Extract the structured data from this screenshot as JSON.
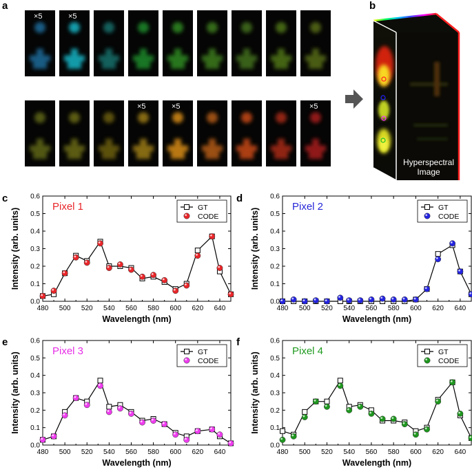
{
  "figure": {
    "panel_labels": [
      "a",
      "b",
      "c",
      "d",
      "e",
      "f"
    ],
    "panel_a": {
      "rows": [
        {
          "tiles": [
            {
              "color": "#1c6a9a",
              "badge": "×5"
            },
            {
              "color": "#19b5c6",
              "badge": "×5"
            },
            {
              "color": "#14706c",
              "badge": ""
            },
            {
              "color": "#1c8a2a",
              "badge": ""
            },
            {
              "color": "#2e8a24",
              "badge": ""
            },
            {
              "color": "#3e7c1e",
              "badge": ""
            },
            {
              "color": "#43701a",
              "badge": ""
            },
            {
              "color": "#4f7418",
              "badge": ""
            },
            {
              "color": "#566c16",
              "badge": ""
            }
          ]
        },
        {
          "tiles": [
            {
              "color": "#5e6616",
              "badge": ""
            },
            {
              "color": "#6a6a14",
              "badge": ""
            },
            {
              "color": "#6c5e10",
              "badge": ""
            },
            {
              "color": "#9c7c14",
              "badge": "×5"
            },
            {
              "color": "#d88c16",
              "badge": "×5"
            },
            {
              "color": "#b45c12",
              "badge": ""
            },
            {
              "color": "#c84818",
              "badge": ""
            },
            {
              "color": "#a82a14",
              "badge": ""
            },
            {
              "color": "#a81e1e",
              "badge": "×5"
            }
          ]
        }
      ]
    },
    "panel_b": {
      "text_line1": "Hyperspectral",
      "text_line2": "Image",
      "markers": [
        {
          "name": "pixel-1-marker",
          "color": "#ff2020"
        },
        {
          "name": "pixel-2-marker",
          "color": "#2020ff"
        },
        {
          "name": "pixel-3-marker",
          "color": "#ff30ff"
        },
        {
          "name": "pixel-4-marker",
          "color": "#20c020"
        }
      ]
    }
  },
  "chart_data": [
    {
      "panel": "c",
      "type": "line",
      "title": "Pixel 1",
      "title_color": "#e8262a",
      "marker_color": "#e8262a",
      "xlabel": "Wavelength (nm)",
      "ylabel": "Intensity (arb. units)",
      "xlim": [
        480,
        650
      ],
      "ylim": [
        0,
        0.6
      ],
      "xticks": [
        480,
        500,
        520,
        540,
        560,
        580,
        600,
        620,
        640
      ],
      "yticks": [
        0.0,
        0.1,
        0.2,
        0.3,
        0.4,
        0.5,
        0.6
      ],
      "ytick_labels": [
        "0.0",
        "0.1",
        "0.2",
        "0.3",
        "0.4",
        "0.5",
        "0.6"
      ],
      "legend": [
        "GT",
        "CODE"
      ],
      "series": [
        {
          "name": "GT",
          "x": [
            480,
            490,
            500,
            510,
            520,
            532,
            540,
            550,
            560,
            570,
            580,
            590,
            600,
            610,
            620,
            633,
            640,
            650
          ],
          "values": [
            0.03,
            0.04,
            0.16,
            0.26,
            0.23,
            0.34,
            0.2,
            0.2,
            0.19,
            0.13,
            0.14,
            0.11,
            0.07,
            0.1,
            0.29,
            0.37,
            0.17,
            0.04
          ]
        },
        {
          "name": "CODE",
          "x": [
            480,
            490,
            500,
            510,
            520,
            532,
            540,
            550,
            560,
            570,
            580,
            590,
            600,
            610,
            620,
            633,
            640,
            650
          ],
          "values": [
            0.03,
            0.06,
            0.16,
            0.25,
            0.22,
            0.33,
            0.19,
            0.21,
            0.18,
            0.14,
            0.15,
            0.12,
            0.06,
            0.09,
            0.26,
            0.37,
            0.19,
            0.04
          ]
        }
      ]
    },
    {
      "panel": "d",
      "type": "line",
      "title": "Pixel 2",
      "title_color": "#2626d8",
      "marker_color": "#2424e0",
      "xlabel": "Wavelength (nm)",
      "ylabel": "",
      "xlim": [
        480,
        650
      ],
      "ylim": [
        0,
        0.6
      ],
      "xticks": [
        480,
        500,
        520,
        540,
        560,
        580,
        600,
        620,
        640
      ],
      "yticks": [
        0.0,
        0.1,
        0.2,
        0.3,
        0.4,
        0.5,
        0.6
      ],
      "ytick_labels": [
        "0.0",
        "0.1",
        "0.2",
        "0.3",
        "0.4",
        "0.5",
        "0.6"
      ],
      "legend": [
        "GT",
        "CODE"
      ],
      "series": [
        {
          "name": "GT",
          "x": [
            480,
            490,
            500,
            510,
            520,
            532,
            540,
            550,
            560,
            570,
            580,
            590,
            600,
            610,
            620,
            633,
            640,
            650
          ],
          "values": [
            0.0,
            0.0,
            0.0,
            0.0,
            0.0,
            0.0,
            0.0,
            0.0,
            0.0,
            0.0,
            0.0,
            0.0,
            0.01,
            0.07,
            0.27,
            0.32,
            0.17,
            0.04
          ]
        },
        {
          "name": "CODE",
          "x": [
            480,
            490,
            500,
            510,
            520,
            532,
            540,
            550,
            560,
            570,
            580,
            590,
            600,
            610,
            620,
            633,
            640,
            650
          ],
          "values": [
            0.0,
            0.01,
            0.0,
            0.005,
            0.0,
            0.02,
            0.005,
            0.005,
            0.01,
            0.015,
            0.01,
            0.01,
            0.01,
            0.07,
            0.24,
            0.33,
            0.17,
            0.04
          ]
        }
      ]
    },
    {
      "panel": "e",
      "type": "line",
      "title": "Pixel 3",
      "title_color": "#e62ee6",
      "marker_color": "#ee3cee",
      "xlabel": "Wavelength (nm)",
      "ylabel": "Intensity (arb. units)",
      "xlim": [
        480,
        650
      ],
      "ylim": [
        0,
        0.6
      ],
      "xticks": [
        480,
        500,
        520,
        540,
        560,
        580,
        600,
        620,
        640
      ],
      "yticks": [
        0.0,
        0.1,
        0.2,
        0.3,
        0.4,
        0.5,
        0.6
      ],
      "ytick_labels": [
        "0.0",
        "0.1",
        "0.2",
        "0.3",
        "0.4",
        "0.5",
        "0.6"
      ],
      "legend": [
        "GT",
        "CODE"
      ],
      "series": [
        {
          "name": "GT",
          "x": [
            480,
            490,
            500,
            510,
            520,
            532,
            540,
            550,
            560,
            570,
            580,
            590,
            600,
            610,
            620,
            633,
            640,
            650
          ],
          "values": [
            0.03,
            0.05,
            0.19,
            0.27,
            0.25,
            0.37,
            0.22,
            0.23,
            0.19,
            0.14,
            0.15,
            0.12,
            0.07,
            0.05,
            0.08,
            0.09,
            0.05,
            0.01
          ]
        },
        {
          "name": "CODE",
          "x": [
            480,
            490,
            500,
            510,
            520,
            532,
            540,
            550,
            560,
            570,
            580,
            590,
            600,
            610,
            620,
            633,
            640,
            650
          ],
          "values": [
            0.03,
            0.05,
            0.17,
            0.27,
            0.23,
            0.34,
            0.19,
            0.21,
            0.18,
            0.13,
            0.14,
            0.12,
            0.06,
            0.03,
            0.08,
            0.09,
            0.06,
            0.01
          ]
        }
      ]
    },
    {
      "panel": "f",
      "type": "line",
      "title": "Pixel 4",
      "title_color": "#1e9a1e",
      "marker_color": "#1e961e",
      "xlabel": "Wavelength (nm)",
      "ylabel": "",
      "xlim": [
        480,
        650
      ],
      "ylim": [
        0,
        0.6
      ],
      "xticks": [
        480,
        500,
        520,
        540,
        560,
        580,
        600,
        620,
        640
      ],
      "yticks": [
        0.0,
        0.1,
        0.2,
        0.3,
        0.4,
        0.5,
        0.6
      ],
      "ytick_labels": [
        "0.0",
        "0.1",
        "0.2",
        "0.3",
        "0.4",
        "0.5",
        "0.6"
      ],
      "legend": [
        "GT",
        "CODE"
      ],
      "series": [
        {
          "name": "GT",
          "x": [
            480,
            490,
            500,
            510,
            520,
            532,
            540,
            550,
            560,
            570,
            580,
            590,
            600,
            610,
            620,
            633,
            640,
            650
          ],
          "values": [
            0.08,
            0.06,
            0.19,
            0.25,
            0.25,
            0.37,
            0.22,
            0.23,
            0.2,
            0.14,
            0.14,
            0.13,
            0.08,
            0.1,
            0.26,
            0.36,
            0.17,
            0.04
          ]
        },
        {
          "name": "CODE",
          "x": [
            480,
            490,
            500,
            510,
            520,
            532,
            540,
            550,
            560,
            570,
            580,
            590,
            600,
            610,
            620,
            633,
            640,
            650
          ],
          "values": [
            0.03,
            0.05,
            0.16,
            0.25,
            0.22,
            0.34,
            0.2,
            0.22,
            0.18,
            0.15,
            0.15,
            0.12,
            0.06,
            0.09,
            0.25,
            0.36,
            0.18,
            0.04
          ]
        }
      ]
    }
  ]
}
